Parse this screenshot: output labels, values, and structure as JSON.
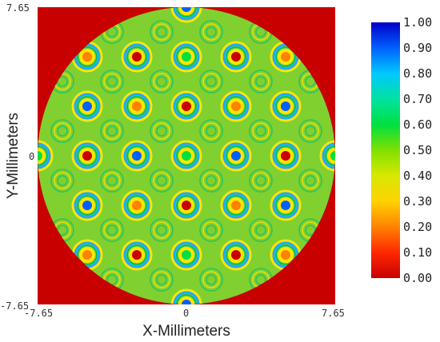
{
  "chart_data": {
    "type": "heatmap",
    "title": "",
    "xlabel": "X-Millimeters",
    "ylabel": "Y-Millimeters",
    "xlim": [
      -7.65,
      7.65
    ],
    "ylim": [
      -7.65,
      7.65
    ],
    "x_ticks": [
      "-7.65",
      "0",
      "7.65"
    ],
    "y_ticks": [
      "7.65",
      "0",
      "-7.65"
    ],
    "aperture": "circular",
    "aperture_radius_mm": 7.65,
    "outside_aperture_value": 0.0,
    "background_value": 0.45,
    "spot_grid": {
      "pitch_x_mm": 2.55,
      "pitch_y_mm": 2.55,
      "columns_mm": [
        -7.65,
        -5.1,
        -2.55,
        0,
        2.55,
        5.1,
        7.65
      ],
      "rows_mm": [
        7.65,
        5.1,
        2.55,
        0,
        -2.55,
        -5.1,
        -7.65
      ]
    },
    "spot_center_values": [
      [
        null,
        null,
        null,
        0.95,
        null,
        null,
        null
      ],
      [
        null,
        0.25,
        0.05,
        0.6,
        0.05,
        0.25,
        null
      ],
      [
        null,
        0.95,
        0.25,
        0.05,
        0.25,
        0.95,
        null
      ],
      [
        0.6,
        0.05,
        0.95,
        0.6,
        0.95,
        0.05,
        0.6
      ],
      [
        null,
        0.95,
        0.25,
        0.05,
        0.25,
        0.95,
        null
      ],
      [
        null,
        0.25,
        0.05,
        0.6,
        0.05,
        0.25,
        null
      ],
      [
        null,
        null,
        null,
        0.95,
        null,
        null,
        null
      ]
    ],
    "colorbar": {
      "min": 0.0,
      "max": 1.0,
      "ticks": [
        "1.00",
        "0.90",
        "0.80",
        "0.70",
        "0.60",
        "0.50",
        "0.40",
        "0.30",
        "0.20",
        "0.10",
        "0.00"
      ],
      "colors": [
        "#0000c8",
        "#0060ff",
        "#00c8ff",
        "#00e2a0",
        "#00e040",
        "#80e000",
        "#d8e800",
        "#ffd200",
        "#ff8200",
        "#ff2800",
        "#c80000"
      ]
    }
  }
}
